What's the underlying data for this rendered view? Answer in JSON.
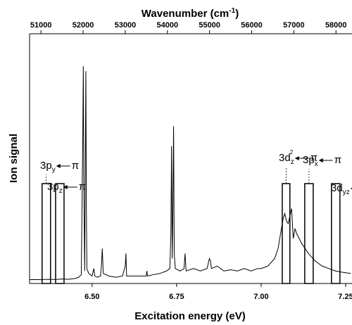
{
  "chart_data": {
    "type": "line",
    "title": {
      "text": "Wavenumber (cm",
      "sup": "-1",
      "suffix": ")"
    },
    "xlabel": "Excitation energy (eV)",
    "ylabel": "Ion signal",
    "color": "#000000",
    "xlim": [
      6.315,
      7.265
    ],
    "xticks": [
      {
        "value": 6.5,
        "label": "6.50"
      },
      6.75,
      {
        "value": 7,
        "label": "7.00"
      },
      7.25
    ],
    "x2lim": [
      50730,
      58350
    ],
    "x2ticks": [
      51000,
      52000,
      53000,
      54000,
      55000,
      56000,
      57000,
      58000
    ],
    "ylim": [
      0,
      100
    ],
    "x": [
      6.315,
      6.33,
      6.35,
      6.37,
      6.39,
      6.41,
      6.43,
      6.45,
      6.46,
      6.468,
      6.4725,
      6.474,
      6.4755,
      6.478,
      6.4815,
      6.483,
      6.4845,
      6.49,
      6.5,
      6.505,
      6.508,
      6.515,
      6.525,
      6.528,
      6.53,
      6.533,
      6.55,
      6.57,
      6.59,
      6.598,
      6.6,
      6.602,
      6.62,
      6.64,
      6.66,
      6.662,
      6.664,
      6.68,
      6.7,
      6.72,
      6.73,
      6.733,
      6.735,
      6.737,
      6.739,
      6.741,
      6.743,
      6.746,
      6.76,
      6.772,
      6.775,
      6.778,
      6.8,
      6.82,
      6.84,
      6.847,
      6.85,
      6.853,
      6.87,
      6.89,
      6.91,
      6.93,
      6.95,
      6.97,
      6.99,
      7.0,
      7.02,
      7.04,
      7.05,
      7.06,
      7.065,
      7.07,
      7.075,
      7.08,
      7.09,
      7.095,
      7.1,
      7.105,
      7.12,
      7.14,
      7.16,
      7.18,
      7.2,
      7.22,
      7.24,
      7.265
    ],
    "series": [
      {
        "name": "Ion signal",
        "values": [
          1.5,
          1.6,
          1.5,
          1.7,
          1.6,
          1.8,
          1.7,
          2,
          2.5,
          3.5,
          60,
          87,
          40,
          5,
          85,
          30,
          6,
          4,
          3,
          6,
          3,
          2.5,
          3,
          8,
          14,
          4,
          3,
          2.5,
          3,
          7,
          12,
          3,
          3,
          3,
          3,
          5,
          3,
          3.5,
          4,
          5,
          6,
          20,
          55,
          10,
          30,
          63,
          12,
          6,
          5,
          6,
          12,
          5,
          6,
          5,
          6,
          10,
          9,
          6,
          7,
          5,
          5.5,
          5,
          6,
          5,
          6,
          6,
          7,
          10,
          14,
          22,
          26,
          28,
          25,
          24,
          30,
          18,
          22,
          20,
          16,
          12,
          9,
          7,
          6,
          5,
          4.5,
          4
        ]
      }
    ],
    "annotations": [
      {
        "label": "3p",
        "sub": "y",
        "target": "π",
        "range": [
          6.352,
          6.377
        ],
        "height": 40
      },
      {
        "label": "3p",
        "sub": "z",
        "target": "π",
        "range": [
          6.392,
          6.417
        ],
        "height": 40
      },
      {
        "label": "3d",
        "sub": "z",
        "sup": "2",
        "target": "π",
        "range": [
          7.0625,
          7.085
        ],
        "height": 40
      },
      {
        "label": "3p",
        "sub": "x",
        "target": "π",
        "range": [
          7.129,
          7.154
        ],
        "height": 40
      },
      {
        "label": "3d",
        "sub": "yz",
        "target": "π",
        "range": [
          7.208,
          7.233
        ],
        "height": 40
      }
    ]
  }
}
